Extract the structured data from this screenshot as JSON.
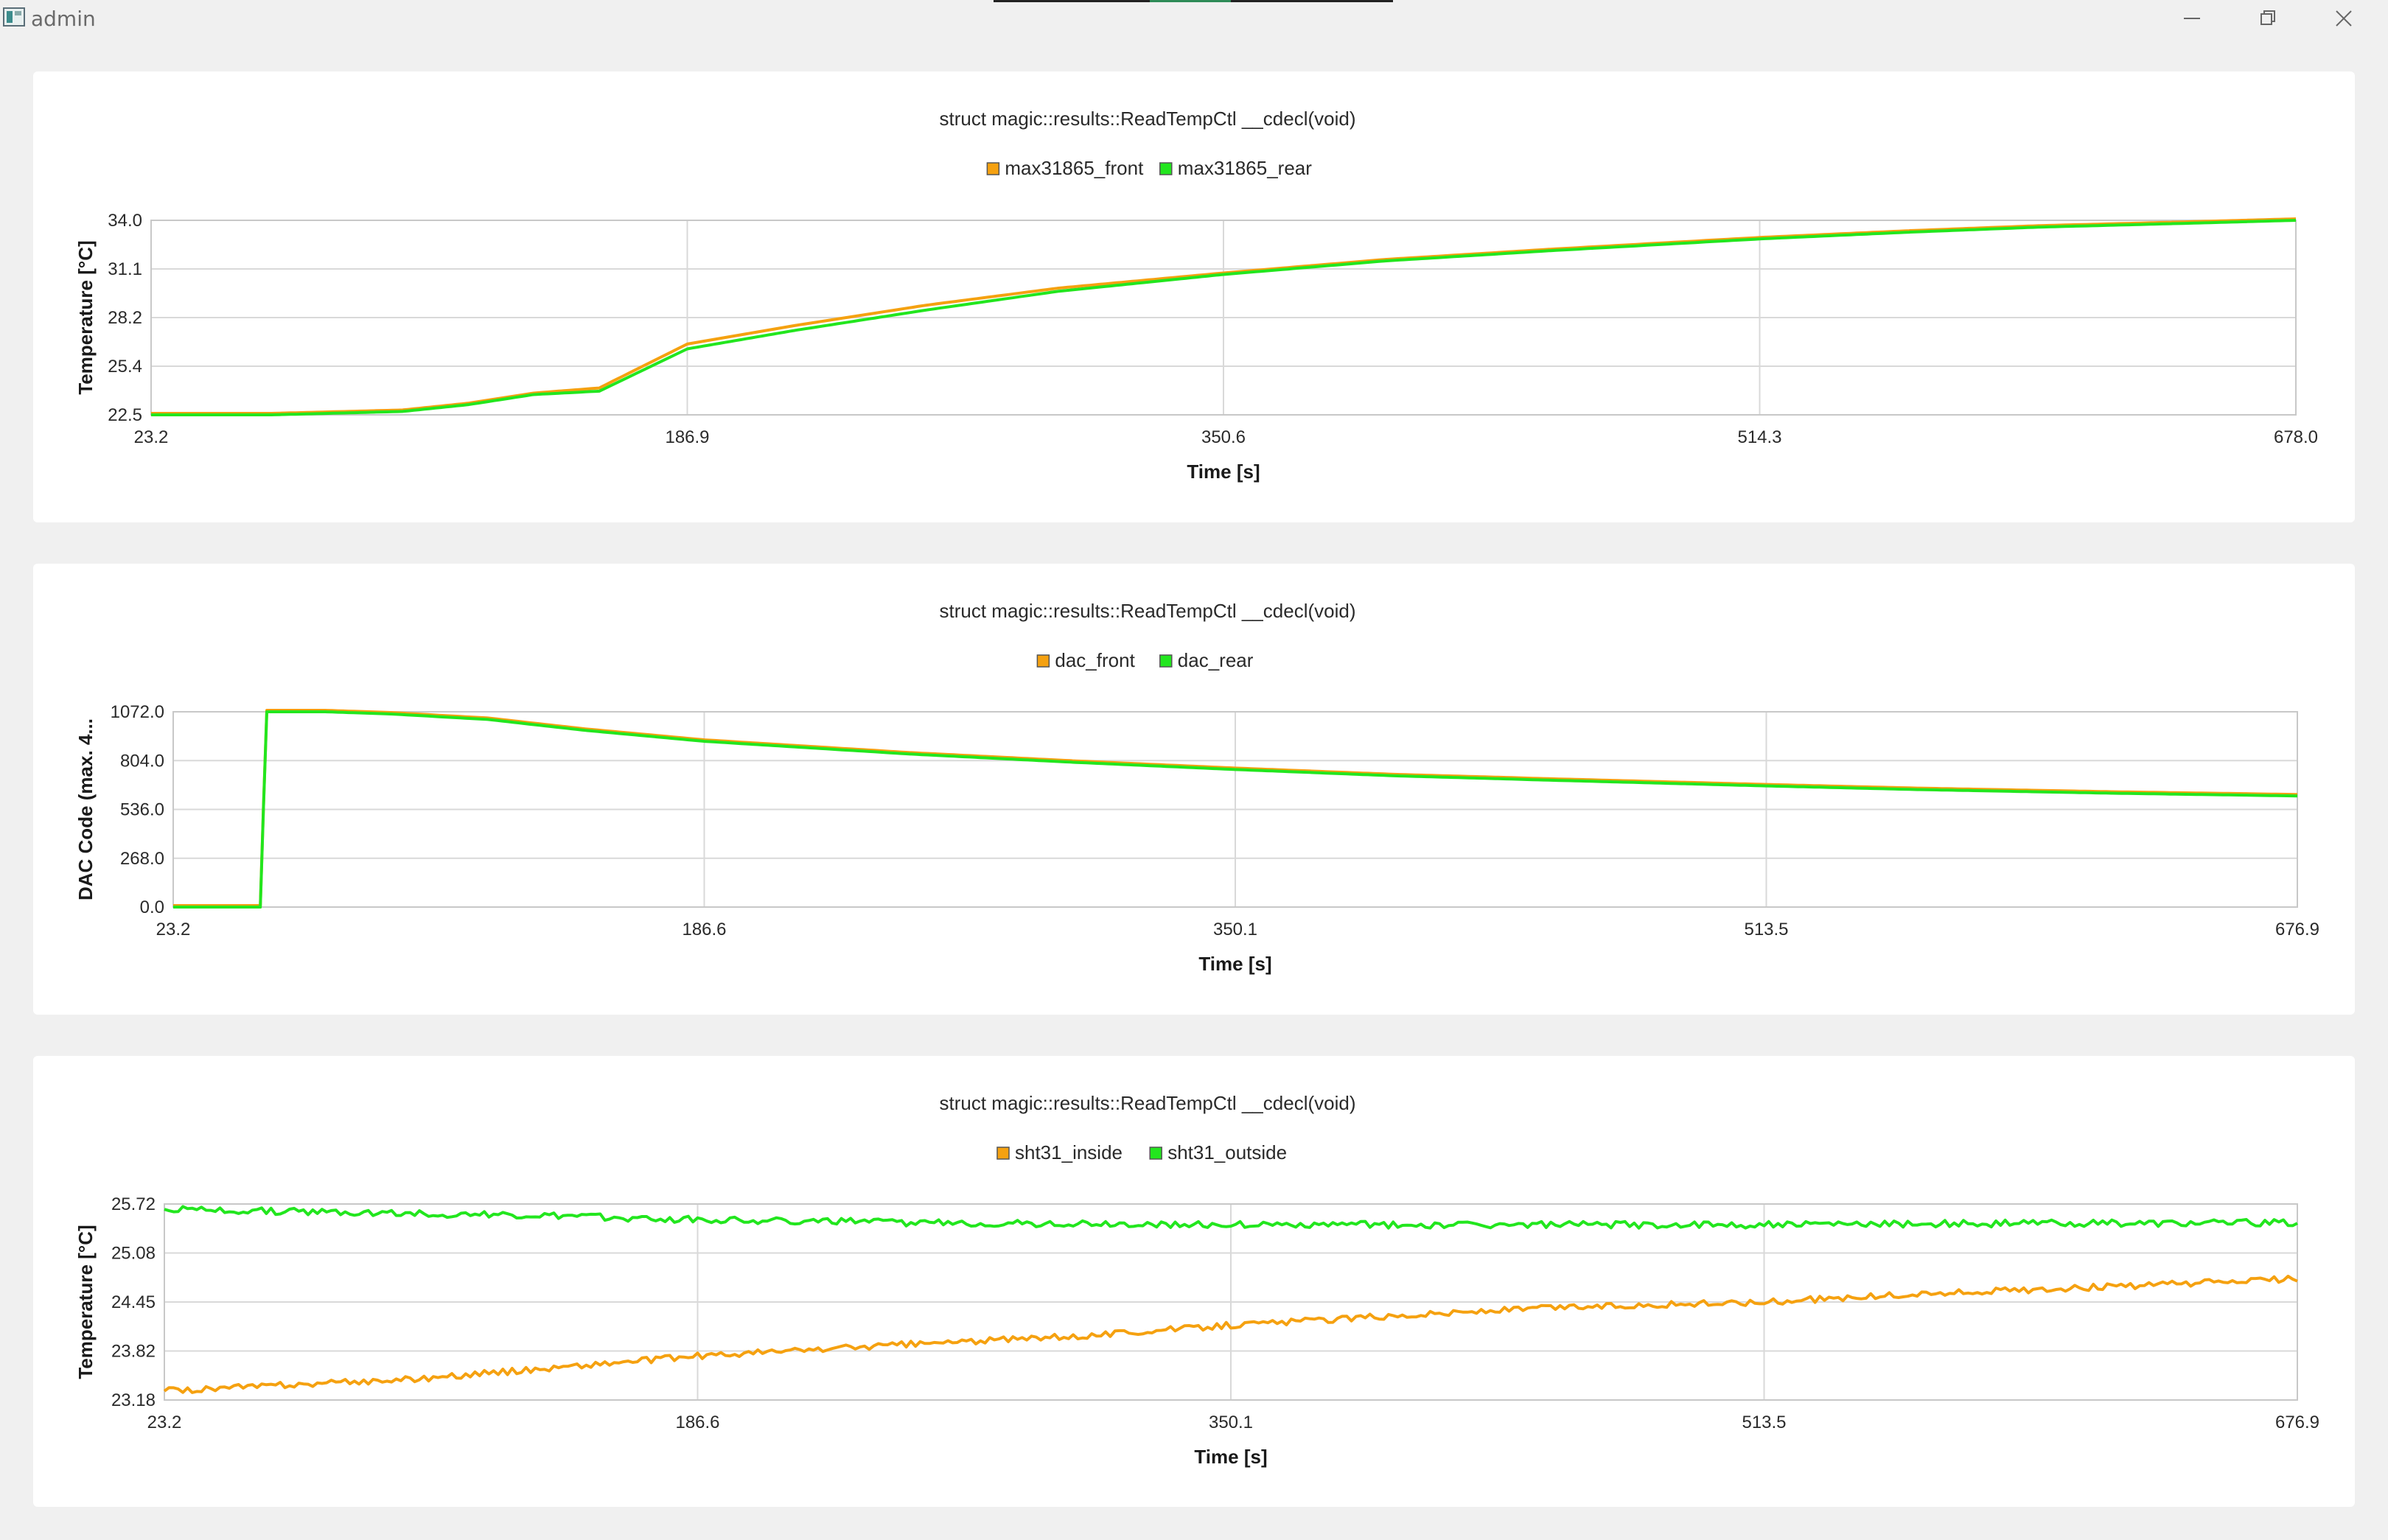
{
  "window": {
    "title": "admin"
  },
  "colors": {
    "orange": "#f5a110",
    "green": "#22e61e",
    "grid": "#d9d9d9",
    "panel": "#ffffff",
    "background": "#f0f0f0"
  },
  "icons": {
    "app": "app-icon",
    "minimize": "minimize-icon",
    "restore": "restore-icon",
    "close": "close-icon"
  },
  "charts": [
    {
      "title": "struct magic::results::ReadTempCtl __cdecl(void)",
      "xlabel": "Time [s]",
      "ylabel": "Temperature [°C]",
      "xticks": [
        "23.2",
        "186.9",
        "350.6",
        "514.3",
        "678.0"
      ],
      "yticks": [
        "34.0",
        "31.1",
        "28.2",
        "25.4",
        "22.5"
      ],
      "legend": [
        "max31865_front",
        "max31865_rear"
      ]
    },
    {
      "title": "struct magic::results::ReadTempCtl __cdecl(void)",
      "xlabel": "Time [s]",
      "ylabel": "DAC Code (max. 4...",
      "xticks": [
        "23.2",
        "186.6",
        "350.1",
        "513.5",
        "676.9"
      ],
      "yticks": [
        "1072.0",
        "804.0",
        "536.0",
        "268.0",
        "0.0"
      ],
      "legend": [
        "dac_front",
        "dac_rear"
      ]
    },
    {
      "title": "struct magic::results::ReadTempCtl __cdecl(void)",
      "xlabel": "Time [s]",
      "ylabel": "Temperature [°C]",
      "xticks": [
        "23.2",
        "186.6",
        "350.1",
        "513.5",
        "676.9"
      ],
      "yticks": [
        "25.72",
        "25.08",
        "24.45",
        "23.82",
        "23.18"
      ],
      "legend": [
        "sht31_inside",
        "sht31_outside"
      ]
    }
  ],
  "chart_data": [
    {
      "type": "line",
      "title": "struct magic::results::ReadTempCtl __cdecl(void)",
      "xlabel": "Time [s]",
      "ylabel": "Temperature [°C]",
      "xlim": [
        23.2,
        678.0
      ],
      "ylim": [
        22.5,
        34.0
      ],
      "grid": true,
      "legend_position": "top-center",
      "series": [
        {
          "name": "max31865_front",
          "color": "#f5a110",
          "x": [
            23.2,
            60,
            100,
            120,
            140,
            160,
            186.9,
            220,
            260,
            300,
            350.6,
            400,
            450,
            514.3,
            560,
            600,
            640,
            678.0
          ],
          "y": [
            22.5,
            22.5,
            22.7,
            23.1,
            23.7,
            24.0,
            26.6,
            27.7,
            28.9,
            29.9,
            30.8,
            31.6,
            32.2,
            32.9,
            33.3,
            33.6,
            33.8,
            34.0
          ]
        },
        {
          "name": "max31865_rear",
          "color": "#22e61e",
          "x": [
            23.2,
            60,
            100,
            120,
            140,
            160,
            186.9,
            220,
            260,
            300,
            350.6,
            400,
            450,
            514.3,
            560,
            600,
            640,
            678.0
          ],
          "y": [
            22.5,
            22.5,
            22.7,
            23.1,
            23.7,
            23.9,
            26.4,
            27.5,
            28.7,
            29.8,
            30.8,
            31.6,
            32.2,
            32.9,
            33.3,
            33.6,
            33.8,
            34.0
          ]
        }
      ]
    },
    {
      "type": "line",
      "title": "struct magic::results::ReadTempCtl __cdecl(void)",
      "xlabel": "Time [s]",
      "ylabel": "DAC Code (max. 4...",
      "xlim": [
        23.2,
        676.9
      ],
      "ylim": [
        0.0,
        1072.0
      ],
      "grid": true,
      "legend_position": "top-center",
      "series": [
        {
          "name": "dac_front",
          "color": "#f5a110",
          "x": [
            23.2,
            50,
            51,
            52,
            70,
            90,
            120,
            150,
            186.6,
            250,
            300,
            350.1,
            400,
            450,
            513.5,
            560,
            620,
            676.9
          ],
          "y": [
            0,
            0,
            560,
            1072,
            1072,
            1060,
            1030,
            970,
            910,
            840,
            795,
            755,
            720,
            695,
            665,
            645,
            625,
            610
          ]
        },
        {
          "name": "dac_rear",
          "color": "#22e61e",
          "x": [
            23.2,
            50,
            51,
            52,
            70,
            90,
            120,
            150,
            186.6,
            250,
            300,
            350.1,
            400,
            450,
            513.5,
            560,
            620,
            676.9
          ],
          "y": [
            0,
            0,
            560,
            1072,
            1072,
            1060,
            1030,
            970,
            910,
            840,
            795,
            755,
            720,
            695,
            665,
            645,
            625,
            610
          ]
        }
      ]
    },
    {
      "type": "line",
      "title": "struct magic::results::ReadTempCtl __cdecl(void)",
      "xlabel": "Time [s]",
      "ylabel": "Temperature [°C]",
      "xlim": [
        23.2,
        676.9
      ],
      "ylim": [
        23.18,
        25.72
      ],
      "grid": true,
      "legend_position": "top-center",
      "series": [
        {
          "name": "sht31_inside",
          "color": "#f5a110",
          "noise": 0.04,
          "x": [
            23.2,
            100,
            186.6,
            250,
            300,
            350.1,
            400,
            450,
            513.5,
            560,
            620,
            676.9
          ],
          "y": [
            23.3,
            23.45,
            23.75,
            23.9,
            24.0,
            24.15,
            24.27,
            24.38,
            24.45,
            24.55,
            24.65,
            24.75
          ]
        },
        {
          "name": "sht31_outside",
          "color": "#22e61e",
          "noise": 0.045,
          "x": [
            23.2,
            100,
            186.6,
            250,
            350.1,
            513.5,
            600,
            676.9
          ],
          "y": [
            25.65,
            25.6,
            25.52,
            25.48,
            25.45,
            25.45,
            25.47,
            25.48
          ]
        }
      ]
    }
  ]
}
